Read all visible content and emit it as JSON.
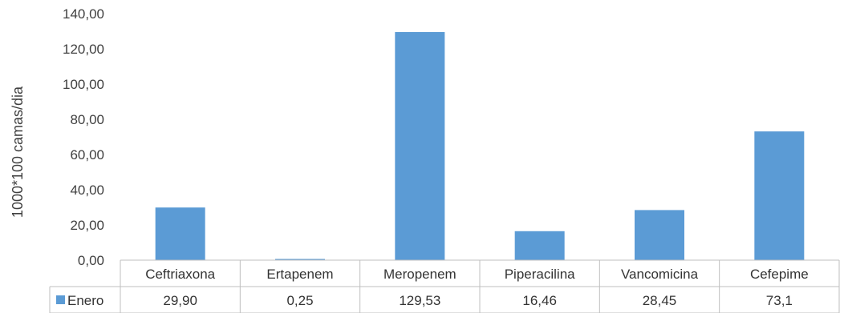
{
  "chart_data": {
    "type": "bar",
    "title": "",
    "xlabel": "",
    "ylabel": "1000*100 camas/dia",
    "ylim": [
      0,
      140
    ],
    "yticks": [
      "0,00",
      "20,00",
      "40,00",
      "60,00",
      "80,00",
      "100,00",
      "120,00",
      "140,00"
    ],
    "categories": [
      "Ceftriaxona",
      "Ertapenem",
      "Meropenem",
      "Piperacilina",
      "Vancomicina",
      "Cefepime"
    ],
    "series": [
      {
        "name": "Enero",
        "values": [
          29.9,
          0.25,
          129.53,
          16.46,
          28.45,
          73.1
        ],
        "value_labels": [
          "29,90",
          "0,25",
          "129,53",
          "16,46",
          "28,45",
          "73,1"
        ],
        "color": "#5b9bd5"
      }
    ],
    "grid": false,
    "legend": "data-table"
  }
}
